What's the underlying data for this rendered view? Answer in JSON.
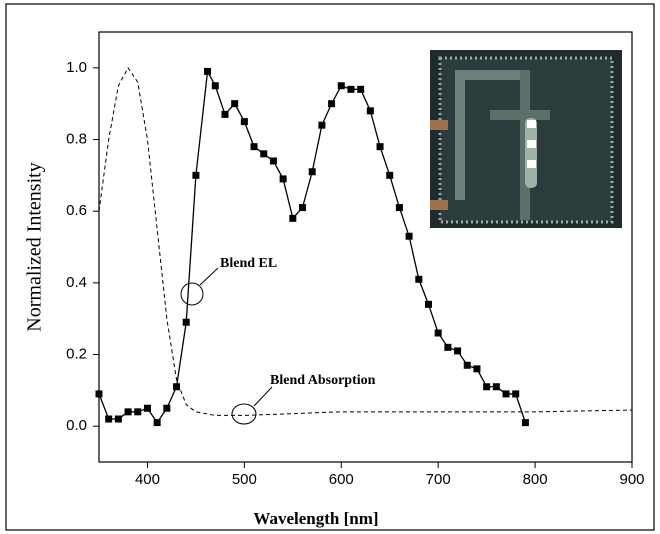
{
  "chart_data": {
    "type": "line",
    "xlabel": "Wavelength [nm]",
    "ylabel": "Normalized Intensity",
    "xlim": [
      350,
      900
    ],
    "xticks": [
      400,
      500,
      600,
      700,
      800,
      900
    ],
    "ylim": [
      -0.1,
      1.1
    ],
    "yticks": [
      {
        "value": 0,
        "label": "0.0"
      },
      0.2,
      0.4,
      0.6,
      0.8,
      {
        "value": 1,
        "label": "1.0"
      }
    ],
    "annotations": [
      "Blend EL",
      "Blend Absorption"
    ],
    "series": [
      {
        "name": "Blend EL",
        "color": "#000000",
        "style": "solid",
        "marker": "square",
        "x": [
          350,
          360,
          370,
          380,
          390,
          400,
          410,
          420,
          430,
          440,
          450,
          462,
          470,
          480,
          490,
          500,
          510,
          520,
          530,
          540,
          550,
          560,
          570,
          580,
          590,
          600,
          610,
          620,
          630,
          640,
          650,
          660,
          670,
          680,
          690,
          700,
          710,
          720,
          730,
          740,
          750,
          760,
          770,
          780,
          790
        ],
        "values": [
          0.09,
          0.02,
          0.02,
          0.04,
          0.04,
          0.05,
          0.01,
          0.05,
          0.11,
          0.29,
          0.7,
          0.99,
          0.95,
          0.87,
          0.9,
          0.85,
          0.78,
          0.76,
          0.74,
          0.69,
          0.58,
          0.61,
          0.71,
          0.84,
          0.9,
          0.95,
          0.94,
          0.94,
          0.88,
          0.78,
          0.7,
          0.61,
          0.53,
          0.41,
          0.34,
          0.26,
          0.22,
          0.21,
          0.17,
          0.16,
          0.11,
          0.11,
          0.09,
          0.09,
          0.01
        ]
      },
      {
        "name": "Blend Absorption",
        "color": "#000000",
        "style": "dashed",
        "marker": "none",
        "x": [
          350,
          360,
          370,
          380,
          390,
          400,
          410,
          420,
          430,
          440,
          450,
          470,
          500,
          600,
          700,
          800,
          900
        ],
        "values": [
          0.6,
          0.8,
          0.95,
          1.0,
          0.96,
          0.8,
          0.55,
          0.3,
          0.13,
          0.06,
          0.04,
          0.03,
          0.03,
          0.04,
          0.04,
          0.04,
          0.045
        ]
      }
    ]
  }
}
